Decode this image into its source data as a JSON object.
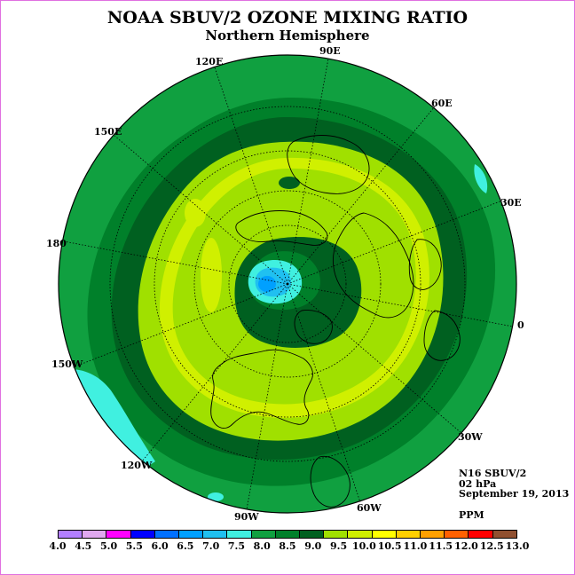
{
  "title": "NOAA SBUV/2 OZONE MIXING RATIO",
  "subtitle": "Northern Hemisphere",
  "longitude_labels": {
    "lon_90e": "90E",
    "lon_120e": "120E",
    "lon_60e": "60E",
    "lon_150e": "150E",
    "lon_30e": "30E",
    "lon_180": "180",
    "lon_0": "0",
    "lon_150w": "150W",
    "lon_30w": "30W",
    "lon_120w": "120W",
    "lon_60w": "60W",
    "lon_90w": "90W"
  },
  "info": {
    "instrument": "N16 SBUV/2",
    "pressure": "02 hPa",
    "date": "September 19, 2013",
    "units": "PPM"
  },
  "colorbar": {
    "ticks": [
      "4.0",
      "4.5",
      "5.0",
      "5.5",
      "6.0",
      "6.5",
      "7.0",
      "7.5",
      "8.0",
      "8.5",
      "9.0",
      "9.5",
      "10.0",
      "10.5",
      "11.0",
      "11.5",
      "12.0",
      "12.5",
      "13.0"
    ],
    "colors": [
      "#b27fff",
      "#e0a8f0",
      "#ff00ff",
      "#0000ff",
      "#0070ff",
      "#00a0ff",
      "#20c0f0",
      "#40f0e0",
      "#10a040",
      "#00802a",
      "#006020",
      "#a0e000",
      "#d0f000",
      "#ffff00",
      "#ffd000",
      "#ffa000",
      "#ff6000",
      "#ff0000",
      "#905030"
    ]
  },
  "map_colors": {
    "level_8_0": "#10a040",
    "level_8_5": "#00802a",
    "level_9_0": "#006020",
    "level_9_5": "#a0e000",
    "level_10_0": "#d0f000",
    "level_7_5": "#40f0e0",
    "level_7_0": "#20c0f0",
    "level_6_5": "#00a0ff"
  }
}
